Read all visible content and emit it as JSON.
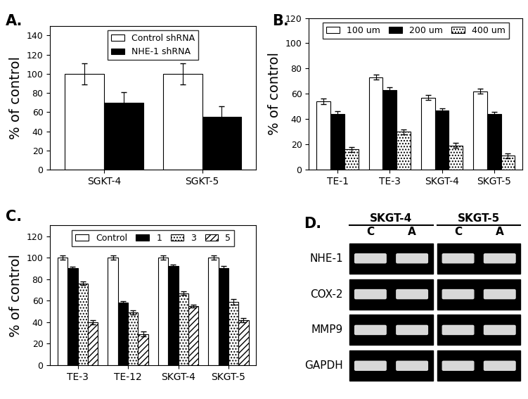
{
  "chart_data": [
    {
      "type": "bar",
      "title": "A.",
      "y_label": "% of control",
      "categories": [
        "SGKT-4",
        "SGKT-5"
      ],
      "series": [
        {
          "name": "Control shRNA",
          "color": "#ffffff",
          "values": [
            100,
            100
          ],
          "errors": [
            11,
            11
          ]
        },
        {
          "name": "NHE-1 shRNA",
          "color": "#000000",
          "values": [
            70,
            55
          ],
          "errors": [
            11,
            11
          ]
        }
      ],
      "ylim": [
        0,
        150
      ],
      "yticks": [
        0,
        20,
        40,
        60,
        80,
        100,
        120,
        140
      ],
      "legend": "upper center"
    },
    {
      "type": "bar",
      "title": "B.",
      "y_label": "% of control",
      "categories": [
        "TE-1",
        "TE-3",
        "SKGT-4",
        "SKGT-5"
      ],
      "series": [
        {
          "name": "100 um",
          "color": "#ffffff",
          "values": [
            54,
            73,
            57,
            62
          ],
          "errors": [
            2,
            2,
            2,
            2
          ]
        },
        {
          "name": "200 um",
          "color": "#000000",
          "values": [
            44,
            63,
            47,
            44
          ],
          "errors": [
            2,
            2,
            1.5,
            1.5
          ]
        },
        {
          "name": "400 um",
          "color": "#ffffff",
          "values": [
            16,
            30,
            19,
            11
          ],
          "errors": [
            2,
            2,
            2,
            2
          ]
        }
      ],
      "ylim": [
        0,
        120
      ],
      "yticks": [
        0,
        20,
        40,
        60,
        80,
        100,
        120
      ],
      "legend": "upper center"
    },
    {
      "type": "bar",
      "title": "C.",
      "y_label": "% of control",
      "categories": [
        "TE-3",
        "TE-12",
        "SKGT-4",
        "SKGT-5"
      ],
      "series": [
        {
          "name": "Control",
          "color": "#ffffff",
          "values": [
            100,
            100,
            100,
            100
          ],
          "errors": [
            2,
            2,
            2,
            2
          ]
        },
        {
          "name": "1",
          "color": "#000000",
          "values": [
            90,
            58,
            92,
            90
          ],
          "errors": [
            1.5,
            1.5,
            1.5,
            2
          ]
        },
        {
          "name": "3",
          "color": "#ffffff",
          "values": [
            76,
            49,
            67,
            59
          ],
          "errors": [
            1.5,
            2,
            1.5,
            2.5
          ]
        },
        {
          "name": "5",
          "color": "#ffffff",
          "values": [
            40,
            29,
            55,
            42
          ],
          "errors": [
            2,
            2,
            1.5,
            2
          ]
        }
      ],
      "ylim": [
        0,
        130
      ],
      "yticks": [
        0,
        20,
        40,
        60,
        80,
        100,
        120
      ],
      "legend": "upper center"
    }
  ],
  "gel": {
    "title": "D.",
    "groups": [
      {
        "name": "SKGT-4",
        "lanes": [
          "C",
          "A"
        ]
      },
      {
        "name": "SKGT-5",
        "lanes": [
          "C",
          "A"
        ]
      }
    ],
    "rows": [
      "NHE-1",
      "COX-2",
      "MMP9",
      "GAPDH"
    ]
  }
}
